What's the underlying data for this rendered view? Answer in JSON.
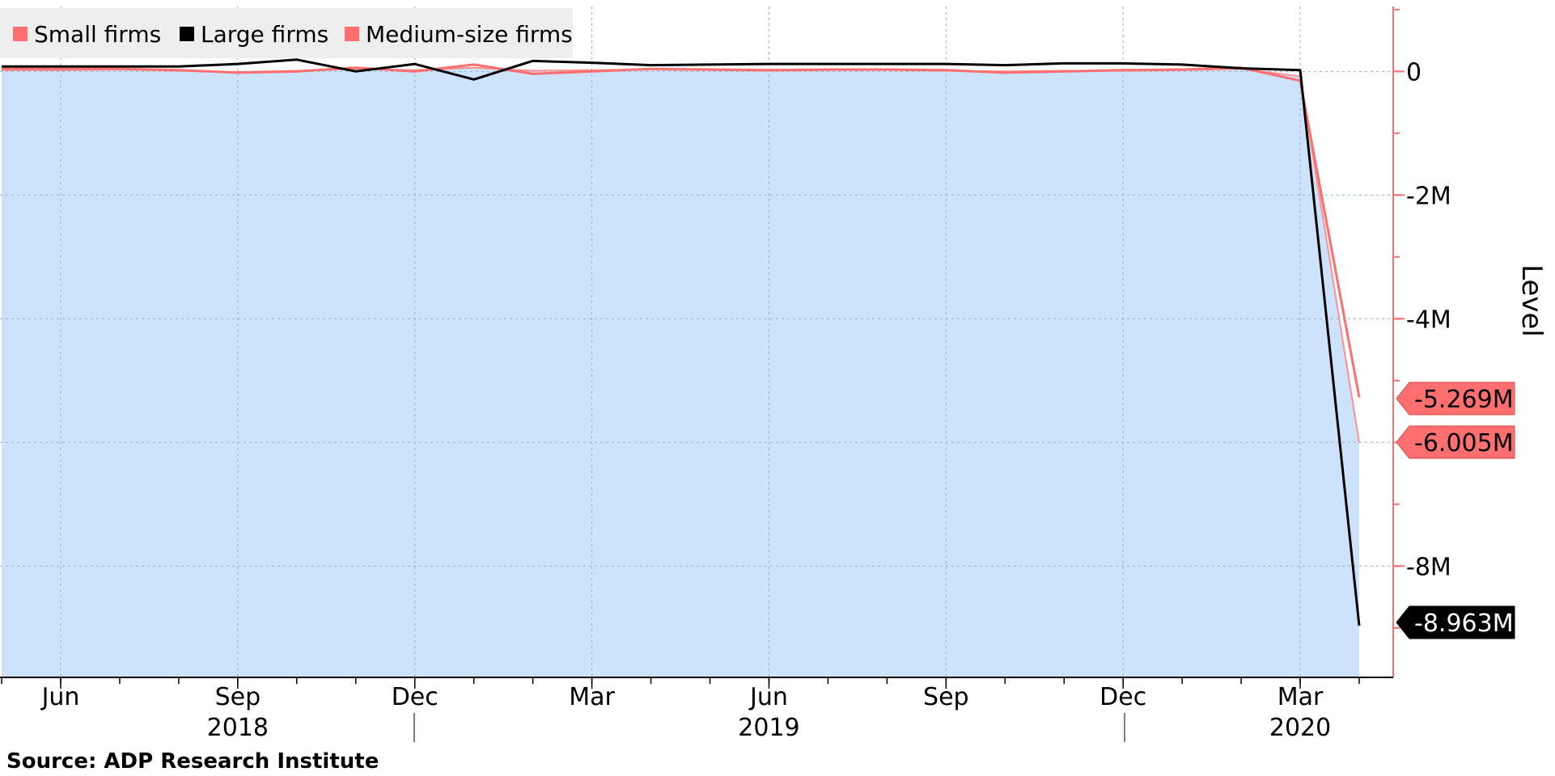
{
  "chart_data": {
    "type": "line",
    "legend": {
      "placement": "top-left",
      "entries": [
        {
          "label": "Small firms",
          "color": "#ff6f6f"
        },
        {
          "label": "Large firms",
          "color": "#000000"
        },
        {
          "label": "Medium-size firms",
          "color": "#ff6f6f"
        }
      ]
    },
    "x_ticks": [
      "Jun",
      "Sep",
      "Dec",
      "Mar",
      "Jun",
      "Sep",
      "Dec",
      "Mar"
    ],
    "x_tick_months": [
      "2018-06",
      "2018-09",
      "2018-12",
      "2019-03",
      "2019-06",
      "2019-09",
      "2019-12",
      "2020-03"
    ],
    "x_year_labels": [
      {
        "label": "2018",
        "month": "2018-09"
      },
      {
        "label": "2019",
        "month": "2019-06"
      },
      {
        "label": "2020",
        "month": "2020-03"
      }
    ],
    "x": [
      "2018-05",
      "2018-06",
      "2018-07",
      "2018-08",
      "2018-09",
      "2018-10",
      "2018-11",
      "2018-12",
      "2019-01",
      "2019-02",
      "2019-03",
      "2019-04",
      "2019-05",
      "2019-06",
      "2019-07",
      "2019-08",
      "2019-09",
      "2019-10",
      "2019-11",
      "2019-12",
      "2020-01",
      "2020-02",
      "2020-03",
      "2020-04"
    ],
    "y_axis": {
      "label": "Level",
      "ylim": [
        -9800000,
        1050000
      ],
      "ticks": [
        {
          "value": 0,
          "label": "0"
        },
        {
          "value": -2000000,
          "label": "-2M"
        },
        {
          "value": -4000000,
          "label": "-4M"
        },
        {
          "value": -8000000,
          "label": "-8M"
        }
      ],
      "position": "right"
    },
    "series": [
      {
        "name": "Large firms",
        "color": "#000000",
        "values": [
          80000,
          80000,
          80000,
          80000,
          120000,
          190000,
          0,
          120000,
          -130000,
          170000,
          140000,
          100000,
          110000,
          120000,
          120000,
          120000,
          120000,
          100000,
          130000,
          130000,
          110000,
          50000,
          20000,
          -8963000
        ],
        "end_label": "-8.963M"
      },
      {
        "name": "Small firms",
        "color": "#ff6f6f",
        "values": [
          40000,
          40000,
          40000,
          20000,
          -20000,
          0,
          60000,
          0,
          110000,
          -40000,
          0,
          40000,
          30000,
          20000,
          30000,
          30000,
          20000,
          -20000,
          0,
          20000,
          30000,
          60000,
          -150000,
          -5269000
        ],
        "end_label": "-5.269M"
      },
      {
        "name": "Medium-size firms",
        "color": "#ff8f8f",
        "values": [
          20000,
          20000,
          30000,
          10000,
          -10000,
          10000,
          40000,
          20000,
          60000,
          10000,
          20000,
          30000,
          20000,
          10000,
          20000,
          20000,
          10000,
          0,
          10000,
          10000,
          20000,
          40000,
          -80000,
          -6005000
        ],
        "end_label": "-6.005M"
      }
    ],
    "area": {
      "color": "#cce3fb",
      "follows": "Medium-size firms"
    },
    "grid": true,
    "source": "Source: ADP Research Institute"
  }
}
